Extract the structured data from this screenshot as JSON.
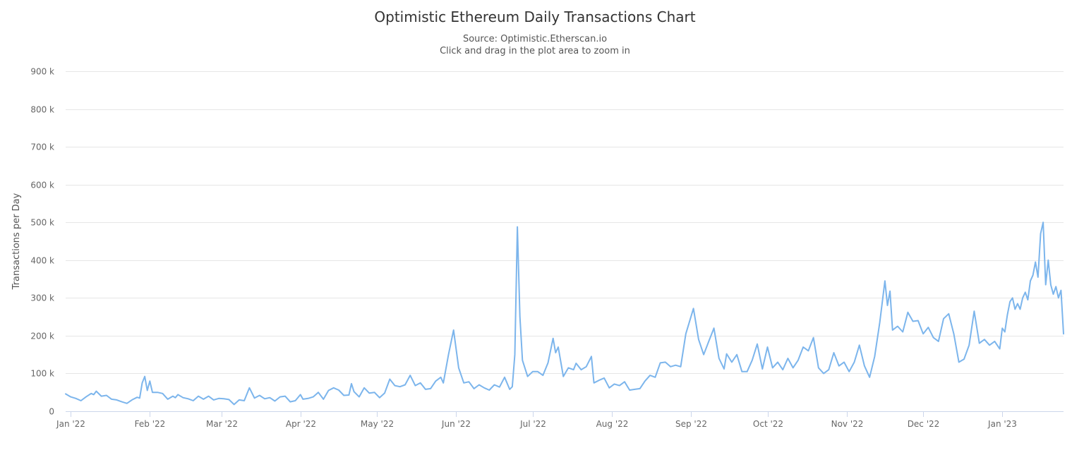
{
  "chart_data": {
    "type": "line",
    "title": "Optimistic Ethereum Daily Transactions Chart",
    "subtitle": "Source: Optimistic.Etherscan.io",
    "hint": "Click and drag in the plot area to zoom in",
    "xlabel": "",
    "ylabel": "Transactions per Day",
    "ylim": [
      0,
      900000
    ],
    "y_ticks": [
      {
        "value": 0,
        "label": "0"
      },
      {
        "value": 100000,
        "label": "100 k"
      },
      {
        "value": 200000,
        "label": "200 k"
      },
      {
        "value": 300000,
        "label": "300 k"
      },
      {
        "value": 400000,
        "label": "400 k"
      },
      {
        "value": 500000,
        "label": "500 k"
      },
      {
        "value": 600000,
        "label": "600 k"
      },
      {
        "value": 700000,
        "label": "700 k"
      },
      {
        "value": 800000,
        "label": "800 k"
      },
      {
        "value": 900000,
        "label": "900 k"
      }
    ],
    "x_range": [
      "2021-12-30",
      "2023-01-25"
    ],
    "x_ticks": [
      {
        "date": "2022-01-01",
        "label": "Jan '22"
      },
      {
        "date": "2022-02-01",
        "label": "Feb '22"
      },
      {
        "date": "2022-03-01",
        "label": "Mar '22"
      },
      {
        "date": "2022-04-01",
        "label": "Apr '22"
      },
      {
        "date": "2022-05-01",
        "label": "May '22"
      },
      {
        "date": "2022-06-01",
        "label": "Jun '22"
      },
      {
        "date": "2022-07-01",
        "label": "Jul '22"
      },
      {
        "date": "2022-08-01",
        "label": "Aug '22"
      },
      {
        "date": "2022-09-01",
        "label": "Sep '22"
      },
      {
        "date": "2022-10-01",
        "label": "Oct '22"
      },
      {
        "date": "2022-11-01",
        "label": "Nov '22"
      },
      {
        "date": "2022-12-01",
        "label": "Dec '22"
      },
      {
        "date": "2023-01-01",
        "label": "Jan '23"
      }
    ],
    "grid": true,
    "legend": "none",
    "line_color": "#7cb5ec",
    "series": [
      {
        "points": [
          [
            "2021-12-30",
            46000
          ],
          [
            "2022-01-01",
            38000
          ],
          [
            "2022-01-03",
            34000
          ],
          [
            "2022-01-05",
            28000
          ],
          [
            "2022-01-07",
            38000
          ],
          [
            "2022-01-09",
            47000
          ],
          [
            "2022-01-10",
            44000
          ],
          [
            "2022-01-11",
            53000
          ],
          [
            "2022-01-13",
            40000
          ],
          [
            "2022-01-15",
            42000
          ],
          [
            "2022-01-17",
            32000
          ],
          [
            "2022-01-19",
            30000
          ],
          [
            "2022-01-21",
            25000
          ],
          [
            "2022-01-23",
            21000
          ],
          [
            "2022-01-25",
            30000
          ],
          [
            "2022-01-27",
            37000
          ],
          [
            "2022-01-28",
            35000
          ],
          [
            "2022-01-29",
            75000
          ],
          [
            "2022-01-30",
            92000
          ],
          [
            "2022-01-31",
            55000
          ],
          [
            "2022-02-01",
            80000
          ],
          [
            "2022-02-02",
            50000
          ],
          [
            "2022-02-04",
            50000
          ],
          [
            "2022-02-06",
            47000
          ],
          [
            "2022-02-08",
            32000
          ],
          [
            "2022-02-10",
            40000
          ],
          [
            "2022-02-11",
            36000
          ],
          [
            "2022-02-12",
            44000
          ],
          [
            "2022-02-14",
            36000
          ],
          [
            "2022-02-16",
            33000
          ],
          [
            "2022-02-18",
            28000
          ],
          [
            "2022-02-20",
            40000
          ],
          [
            "2022-02-22",
            32000
          ],
          [
            "2022-02-24",
            40000
          ],
          [
            "2022-02-26",
            30000
          ],
          [
            "2022-02-28",
            34000
          ],
          [
            "2022-03-02",
            33000
          ],
          [
            "2022-03-04",
            31000
          ],
          [
            "2022-03-06",
            18000
          ],
          [
            "2022-03-08",
            30000
          ],
          [
            "2022-03-10",
            28000
          ],
          [
            "2022-03-12",
            62000
          ],
          [
            "2022-03-14",
            35000
          ],
          [
            "2022-03-16",
            42000
          ],
          [
            "2022-03-18",
            33000
          ],
          [
            "2022-03-20",
            36000
          ],
          [
            "2022-03-22",
            27000
          ],
          [
            "2022-03-24",
            38000
          ],
          [
            "2022-03-26",
            40000
          ],
          [
            "2022-03-28",
            25000
          ],
          [
            "2022-03-30",
            28000
          ],
          [
            "2022-04-01",
            44000
          ],
          [
            "2022-04-02",
            32000
          ],
          [
            "2022-04-04",
            34000
          ],
          [
            "2022-04-06",
            38000
          ],
          [
            "2022-04-08",
            50000
          ],
          [
            "2022-04-10",
            32000
          ],
          [
            "2022-04-12",
            55000
          ],
          [
            "2022-04-14",
            62000
          ],
          [
            "2022-04-16",
            56000
          ],
          [
            "2022-04-18",
            42000
          ],
          [
            "2022-04-20",
            43000
          ],
          [
            "2022-04-21",
            73000
          ],
          [
            "2022-04-22",
            52000
          ],
          [
            "2022-04-24",
            38000
          ],
          [
            "2022-04-26",
            62000
          ],
          [
            "2022-04-28",
            48000
          ],
          [
            "2022-04-30",
            50000
          ],
          [
            "2022-05-02",
            36000
          ],
          [
            "2022-05-04",
            48000
          ],
          [
            "2022-05-06",
            85000
          ],
          [
            "2022-05-08",
            68000
          ],
          [
            "2022-05-10",
            65000
          ],
          [
            "2022-05-12",
            70000
          ],
          [
            "2022-05-14",
            95000
          ],
          [
            "2022-05-16",
            68000
          ],
          [
            "2022-05-18",
            75000
          ],
          [
            "2022-05-20",
            58000
          ],
          [
            "2022-05-22",
            60000
          ],
          [
            "2022-05-24",
            80000
          ],
          [
            "2022-05-26",
            90000
          ],
          [
            "2022-05-27",
            75000
          ],
          [
            "2022-05-29",
            150000
          ],
          [
            "2022-05-31",
            215000
          ],
          [
            "2022-06-02",
            115000
          ],
          [
            "2022-06-04",
            75000
          ],
          [
            "2022-06-06",
            78000
          ],
          [
            "2022-06-08",
            60000
          ],
          [
            "2022-06-10",
            70000
          ],
          [
            "2022-06-12",
            62000
          ],
          [
            "2022-06-14",
            56000
          ],
          [
            "2022-06-16",
            70000
          ],
          [
            "2022-06-18",
            64000
          ],
          [
            "2022-06-20",
            90000
          ],
          [
            "2022-06-22",
            58000
          ],
          [
            "2022-06-23",
            65000
          ],
          [
            "2022-06-24",
            150000
          ],
          [
            "2022-06-25",
            488000
          ],
          [
            "2022-06-26",
            250000
          ],
          [
            "2022-06-27",
            135000
          ],
          [
            "2022-06-29",
            92000
          ],
          [
            "2022-07-01",
            105000
          ],
          [
            "2022-07-03",
            105000
          ],
          [
            "2022-07-05",
            95000
          ],
          [
            "2022-07-07",
            128000
          ],
          [
            "2022-07-09",
            193000
          ],
          [
            "2022-07-10",
            155000
          ],
          [
            "2022-07-11",
            170000
          ],
          [
            "2022-07-13",
            92000
          ],
          [
            "2022-07-15",
            115000
          ],
          [
            "2022-07-17",
            110000
          ],
          [
            "2022-07-18",
            127000
          ],
          [
            "2022-07-20",
            110000
          ],
          [
            "2022-07-22",
            118000
          ],
          [
            "2022-07-24",
            145000
          ],
          [
            "2022-07-25",
            75000
          ],
          [
            "2022-07-27",
            82000
          ],
          [
            "2022-07-29",
            88000
          ],
          [
            "2022-07-31",
            62000
          ],
          [
            "2022-08-02",
            72000
          ],
          [
            "2022-08-04",
            68000
          ],
          [
            "2022-08-06",
            78000
          ],
          [
            "2022-08-08",
            56000
          ],
          [
            "2022-08-10",
            58000
          ],
          [
            "2022-08-12",
            60000
          ],
          [
            "2022-08-14",
            80000
          ],
          [
            "2022-08-16",
            95000
          ],
          [
            "2022-08-18",
            90000
          ],
          [
            "2022-08-20",
            128000
          ],
          [
            "2022-08-22",
            130000
          ],
          [
            "2022-08-24",
            118000
          ],
          [
            "2022-08-26",
            122000
          ],
          [
            "2022-08-28",
            118000
          ],
          [
            "2022-08-30",
            205000
          ],
          [
            "2022-09-02",
            272000
          ],
          [
            "2022-09-04",
            190000
          ],
          [
            "2022-09-06",
            150000
          ],
          [
            "2022-09-08",
            185000
          ],
          [
            "2022-09-10",
            220000
          ],
          [
            "2022-09-12",
            140000
          ],
          [
            "2022-09-14",
            112000
          ],
          [
            "2022-09-15",
            152000
          ],
          [
            "2022-09-17",
            130000
          ],
          [
            "2022-09-19",
            150000
          ],
          [
            "2022-09-21",
            105000
          ],
          [
            "2022-09-23",
            105000
          ],
          [
            "2022-09-25",
            135000
          ],
          [
            "2022-09-27",
            178000
          ],
          [
            "2022-09-29",
            112000
          ],
          [
            "2022-10-01",
            170000
          ],
          [
            "2022-10-03",
            115000
          ],
          [
            "2022-10-05",
            130000
          ],
          [
            "2022-10-07",
            110000
          ],
          [
            "2022-10-09",
            140000
          ],
          [
            "2022-10-11",
            115000
          ],
          [
            "2022-10-13",
            135000
          ],
          [
            "2022-10-15",
            170000
          ],
          [
            "2022-10-17",
            160000
          ],
          [
            "2022-10-19",
            195000
          ],
          [
            "2022-10-21",
            115000
          ],
          [
            "2022-10-23",
            100000
          ],
          [
            "2022-10-25",
            110000
          ],
          [
            "2022-10-27",
            155000
          ],
          [
            "2022-10-29",
            120000
          ],
          [
            "2022-10-31",
            130000
          ],
          [
            "2022-11-02",
            105000
          ],
          [
            "2022-11-04",
            130000
          ],
          [
            "2022-11-06",
            175000
          ],
          [
            "2022-11-08",
            120000
          ],
          [
            "2022-11-10",
            90000
          ],
          [
            "2022-11-12",
            145000
          ],
          [
            "2022-11-14",
            235000
          ],
          [
            "2022-11-16",
            345000
          ],
          [
            "2022-11-17",
            280000
          ],
          [
            "2022-11-18",
            318000
          ],
          [
            "2022-11-19",
            215000
          ],
          [
            "2022-11-21",
            225000
          ],
          [
            "2022-11-23",
            210000
          ],
          [
            "2022-11-25",
            262000
          ],
          [
            "2022-11-27",
            238000
          ],
          [
            "2022-11-29",
            240000
          ],
          [
            "2022-12-01",
            205000
          ],
          [
            "2022-12-03",
            222000
          ],
          [
            "2022-12-05",
            195000
          ],
          [
            "2022-12-07",
            185000
          ],
          [
            "2022-12-09",
            245000
          ],
          [
            "2022-12-11",
            258000
          ],
          [
            "2022-12-13",
            205000
          ],
          [
            "2022-12-15",
            130000
          ],
          [
            "2022-12-17",
            138000
          ],
          [
            "2022-12-19",
            175000
          ],
          [
            "2022-12-21",
            265000
          ],
          [
            "2022-12-23",
            180000
          ],
          [
            "2022-12-25",
            190000
          ],
          [
            "2022-12-27",
            175000
          ],
          [
            "2022-12-29",
            185000
          ],
          [
            "2022-12-31",
            165000
          ],
          [
            "2023-01-01",
            220000
          ],
          [
            "2023-01-02",
            210000
          ],
          [
            "2023-01-03",
            255000
          ],
          [
            "2023-01-04",
            290000
          ],
          [
            "2023-01-05",
            300000
          ],
          [
            "2023-01-06",
            270000
          ],
          [
            "2023-01-07",
            285000
          ],
          [
            "2023-01-08",
            270000
          ],
          [
            "2023-01-09",
            300000
          ],
          [
            "2023-01-10",
            315000
          ],
          [
            "2023-01-11",
            295000
          ],
          [
            "2023-01-12",
            345000
          ],
          [
            "2023-01-13",
            360000
          ],
          [
            "2023-01-14",
            395000
          ],
          [
            "2023-01-15",
            355000
          ],
          [
            "2023-01-16",
            470000
          ],
          [
            "2023-01-17",
            500000
          ],
          [
            "2023-01-18",
            335000
          ],
          [
            "2023-01-19",
            400000
          ],
          [
            "2023-01-20",
            335000
          ],
          [
            "2023-01-21",
            310000
          ],
          [
            "2023-01-22",
            330000
          ],
          [
            "2023-01-23",
            300000
          ],
          [
            "2023-01-24",
            320000
          ],
          [
            "2023-01-25",
            205000
          ]
        ]
      }
    ]
  }
}
